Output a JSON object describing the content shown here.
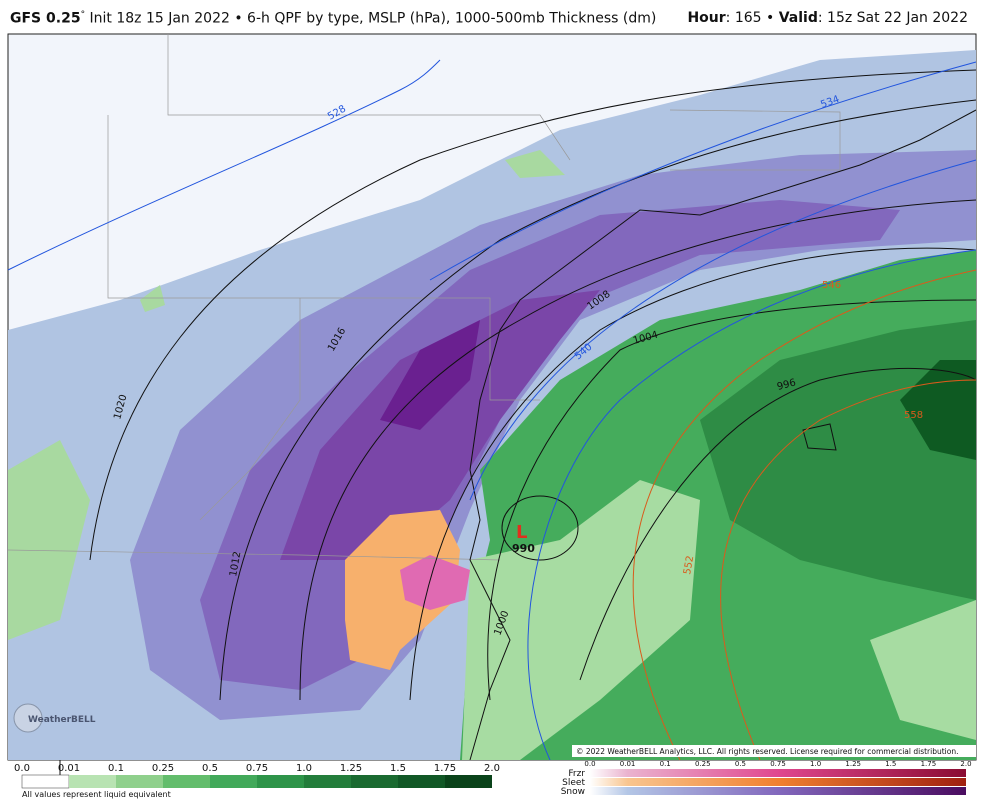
{
  "header": {
    "model": "GFS 0.25",
    "degree": "°",
    "init": "Init 18z 15 Jan 2022 • 6-h QPF by type, MSLP (hPa), 1000-500mb Thickness (dm)",
    "hour_label": "Hour",
    "hour_value": ": 165 •",
    "valid_label": "Valid",
    "valid_value": ": 15z Sat 22 Jan 2022"
  },
  "map": {
    "isobar_labels": [
      "1020",
      "1016",
      "1012",
      "1008",
      "1004",
      "1000",
      "996"
    ],
    "thickness_labels": [
      "528",
      "534",
      "540",
      "546",
      "552",
      "558"
    ],
    "low": {
      "symbol": "L",
      "pressure": "990"
    },
    "logo": "WeatherBELL",
    "copyright": "© 2022 WeatherBELL Analytics, LLC. All rights reserved. License required for commercial distribution."
  },
  "legend": {
    "values": [
      "0.0",
      "0.01",
      "0.1",
      "0.25",
      "0.5",
      "0.75",
      "1.0",
      "1.25",
      "1.5",
      "1.75",
      "2.0"
    ],
    "note": "All values represent liquid equivalent",
    "types": [
      "Frzr",
      "Sleet",
      "Snow"
    ]
  }
}
